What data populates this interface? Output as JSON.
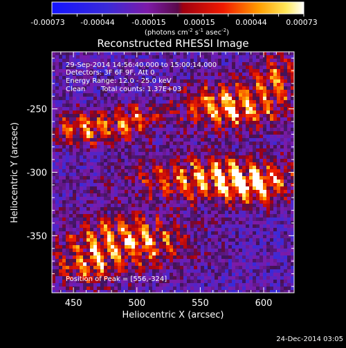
{
  "chart_data": {
    "type": "heatmap",
    "title": "Reconstructed RHESSI Image",
    "xlabel": "Heliocentric X (arcsec)",
    "ylabel": "Heliocentric Y (arcsec)",
    "xlim": [
      433,
      624
    ],
    "ylim": [
      -395,
      -205
    ],
    "x_ticks": [
      450,
      500,
      550,
      600
    ],
    "y_ticks": [
      -250,
      -300,
      -350
    ],
    "colorbar": {
      "ticks": [
        "-0.00073",
        "-0.00044",
        "-0.00015",
        "0.00015",
        "0.00044",
        "0.00073"
      ],
      "units_line": "(photons cm",
      "units_exp1": "-2",
      "units_mid": " s",
      "units_exp2": "-1",
      "units_end": " asec",
      "units_exp3": "-2",
      "units_close": ")",
      "range": [
        -0.00073,
        0.00073
      ]
    },
    "annotations": {
      "time": "29-Sep-2014 14:56:40.000 to 15:00:14.000",
      "detectors": "Detectors: 3F 6F 9F, Att 0",
      "energy": "Energy Range: 12.0 - 25.0 keV",
      "clean": "Clean",
      "counts": "Total counts: 1.37E+03",
      "peak": "Position of Peak = [556,-324]"
    },
    "peak_position": [
      556,
      -324
    ],
    "footer_date": "24-Dec-2014 03:05"
  }
}
